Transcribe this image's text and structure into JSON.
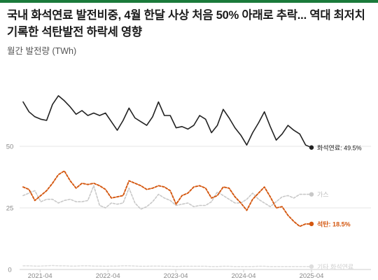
{
  "title": "국내 화석연료 발전비중, 4월 한달 사상 처음 50% 아래로 추락... 역대 최저치 기록한 석탄발전 하락세 영향",
  "ylabel": "월간 발전량 (TWh)",
  "colors": {
    "accent": "#1a7a3a",
    "fossil": "#222222",
    "coal": "#d4570f",
    "gas": "#c8c8c8",
    "other": "#dddddd",
    "grid": "#e4e4e4"
  },
  "chart_data": {
    "type": "line",
    "title": "",
    "xlabel": "",
    "ylabel": "월간 발전량 (TWh)",
    "x_start": "2021-01",
    "x_end": "2025-04",
    "x_ticks": [
      "2021-04",
      "2022-04",
      "2023-04",
      "2024-04",
      "2025-04"
    ],
    "y_ticks": [
      0,
      25,
      50
    ],
    "ylim": [
      0,
      75
    ],
    "grid": true,
    "series": [
      {
        "name": "화석연료",
        "end_label": "화석연료: 49.5%",
        "style": "solid",
        "values": [
          68,
          64,
          62,
          61,
          60.5,
          67,
          70.5,
          68.5,
          66,
          63,
          64.5,
          62.5,
          63.5,
          62.5,
          63.5,
          60,
          56.5,
          60.5,
          65.5,
          61.5,
          60,
          58.5,
          62,
          68,
          62.5,
          62.5,
          57.5,
          58,
          57,
          58.5,
          62.5,
          61,
          55.5,
          58.5,
          65,
          61.5,
          57.5,
          54.5,
          50.5,
          55.5,
          59.5,
          64,
          58,
          52.5,
          55,
          58.5,
          56.5,
          55,
          50.5,
          49.5
        ]
      },
      {
        "name": "석탄",
        "end_label": "석탄: 18.5%",
        "style": "dashed",
        "values": [
          33.5,
          32.5,
          28,
          30,
          32,
          35,
          38.5,
          40,
          36,
          33,
          35,
          34.5,
          35,
          34,
          32.5,
          29,
          29.5,
          30,
          36,
          35,
          34,
          32.5,
          33,
          34,
          33.5,
          32,
          26.5,
          30,
          31,
          33.5,
          34,
          33,
          29,
          30,
          33.5,
          33,
          29.5,
          27,
          24,
          28.5,
          31,
          33.5,
          29.5,
          25,
          25.5,
          22,
          19.5,
          17.5,
          18.5,
          18.5
        ]
      },
      {
        "name": "가스",
        "end_label": "가스",
        "style": "dashed",
        "values": [
          30,
          31,
          32,
          27.5,
          28.5,
          28.5,
          27,
          28,
          28.5,
          27.5,
          27.5,
          28,
          34,
          26,
          25,
          27,
          26.5,
          27,
          33,
          27,
          24.5,
          25.5,
          27.5,
          30.5,
          29,
          28,
          26,
          26.5,
          27,
          25.5,
          26,
          26,
          27.5,
          31.5,
          30,
          28.5,
          27,
          27,
          28.5,
          31,
          28.5,
          27,
          25.5,
          27.5,
          29.5,
          30,
          29,
          30.5,
          30.5,
          30.5
        ]
      },
      {
        "name": "기타 화석연료",
        "end_label": "기타 화석연료",
        "style": "dashed",
        "values": [
          1.5,
          1.5,
          1.4,
          1.4,
          1.5,
          1.6,
          1.5,
          1.5,
          1.4,
          1.4,
          1.5,
          1.5,
          1.4,
          1.4,
          1.3,
          1.4,
          1.4,
          1.5,
          1.5,
          1.4,
          1.3,
          1.3,
          1.4,
          1.4,
          1.3,
          1.3,
          1.2,
          1.3,
          1.3,
          1.3,
          1.3,
          1.3,
          1.2,
          1.2,
          1.3,
          1.3,
          1.2,
          1.2,
          1.2,
          1.2,
          1.3,
          1.3,
          1.2,
          1.2,
          1.2,
          1.2,
          1.2,
          1.2,
          1.2,
          1.2
        ]
      }
    ]
  }
}
